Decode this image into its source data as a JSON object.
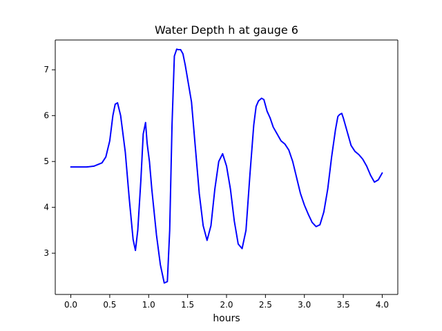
{
  "chart_data": {
    "type": "line",
    "title": "Water Depth h at gauge 6",
    "xlabel": "hours",
    "ylabel": "",
    "xlim": [
      -0.2,
      4.2
    ],
    "ylim": [
      2.1,
      7.65
    ],
    "grid": false,
    "xticks": [
      0.0,
      0.5,
      1.0,
      1.5,
      2.0,
      2.5,
      3.0,
      3.5,
      4.0
    ],
    "xtick_labels": [
      "0.0",
      "0.5",
      "1.0",
      "1.5",
      "2.0",
      "2.5",
      "3.0",
      "3.5",
      "4.0"
    ],
    "yticks": [
      3,
      4,
      5,
      6,
      7
    ],
    "ytick_labels": [
      "3",
      "4",
      "5",
      "6",
      "7"
    ],
    "series": [
      {
        "color": "#0000ff",
        "x": [
          0.0,
          0.1,
          0.2,
          0.3,
          0.4,
          0.45,
          0.5,
          0.54,
          0.57,
          0.6,
          0.64,
          0.7,
          0.75,
          0.8,
          0.83,
          0.86,
          0.9,
          0.93,
          0.96,
          0.98,
          1.01,
          1.04,
          1.1,
          1.15,
          1.2,
          1.24,
          1.27,
          1.3,
          1.33,
          1.36,
          1.38,
          1.41,
          1.44,
          1.47,
          1.5,
          1.55,
          1.6,
          1.65,
          1.7,
          1.75,
          1.8,
          1.85,
          1.9,
          1.95,
          2.0,
          2.05,
          2.1,
          2.15,
          2.2,
          2.25,
          2.3,
          2.35,
          2.38,
          2.41,
          2.45,
          2.48,
          2.52,
          2.56,
          2.6,
          2.65,
          2.7,
          2.75,
          2.8,
          2.85,
          2.9,
          2.95,
          3.0,
          3.05,
          3.1,
          3.15,
          3.2,
          3.25,
          3.3,
          3.35,
          3.4,
          3.43,
          3.45,
          3.48,
          3.5,
          3.55,
          3.6,
          3.65,
          3.7,
          3.75,
          3.8,
          3.85,
          3.9,
          3.95,
          4.0
        ],
        "y": [
          4.88,
          4.88,
          4.88,
          4.9,
          4.97,
          5.1,
          5.45,
          6.0,
          6.25,
          6.28,
          6.0,
          5.2,
          4.2,
          3.3,
          3.06,
          3.5,
          4.6,
          5.6,
          5.85,
          5.4,
          5.0,
          4.4,
          3.4,
          2.75,
          2.35,
          2.38,
          3.5,
          5.8,
          7.3,
          7.45,
          7.44,
          7.44,
          7.35,
          7.1,
          6.8,
          6.3,
          5.3,
          4.3,
          3.6,
          3.28,
          3.6,
          4.4,
          5.0,
          5.17,
          4.9,
          4.4,
          3.7,
          3.2,
          3.1,
          3.5,
          4.7,
          5.8,
          6.2,
          6.32,
          6.38,
          6.35,
          6.1,
          5.95,
          5.75,
          5.6,
          5.45,
          5.38,
          5.25,
          5.0,
          4.65,
          4.3,
          4.05,
          3.85,
          3.67,
          3.58,
          3.62,
          3.9,
          4.4,
          5.1,
          5.7,
          5.98,
          6.02,
          6.05,
          5.95,
          5.65,
          5.35,
          5.22,
          5.15,
          5.05,
          4.9,
          4.7,
          4.55,
          4.6,
          4.75
        ]
      }
    ]
  }
}
